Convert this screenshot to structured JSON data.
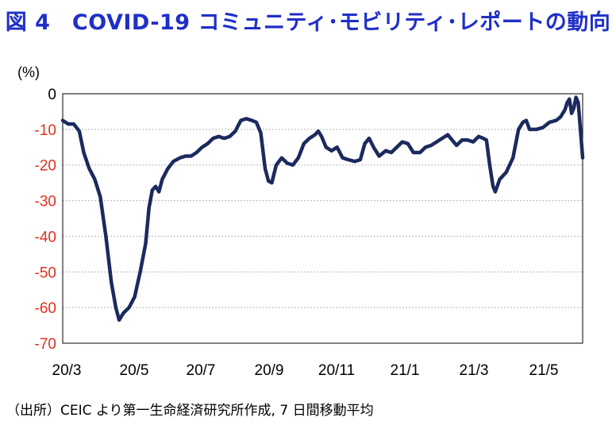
{
  "title": "図 4　COVID-19 コミュニティ･モビリティ･レポートの動向",
  "source": "（出所）CEIC より第一生命経済研究所作成, 7 日間移動平均",
  "chart_data": {
    "type": "line",
    "title": "図 4　COVID-19 コミュニティ･モビリティ･レポートの動向",
    "ylabel": "(%)",
    "xlabel": "",
    "ylim": [
      -70,
      0
    ],
    "yticks": [
      0,
      -10,
      -20,
      -30,
      -40,
      -50,
      -60,
      -70
    ],
    "xticks": [
      "20/3",
      "20/5",
      "20/7",
      "20/9",
      "20/11",
      "21/1",
      "21/3",
      "21/5"
    ],
    "xlim": [
      "2020-02-15",
      "2021-05-30"
    ],
    "grid": true,
    "line_color": "#1b2a5e",
    "series": [
      {
        "name": "",
        "points": [
          [
            "2020-02-15",
            -7.5
          ],
          [
            "2020-02-20",
            -8.5
          ],
          [
            "2020-02-25",
            -8.5
          ],
          [
            "2020-03-01",
            -10.5
          ],
          [
            "2020-03-05",
            -16.5
          ],
          [
            "2020-03-10",
            -21
          ],
          [
            "2020-03-15",
            -24
          ],
          [
            "2020-03-20",
            -29
          ],
          [
            "2020-03-25",
            -40
          ],
          [
            "2020-03-30",
            -53
          ],
          [
            "2020-04-03",
            -60
          ],
          [
            "2020-04-06",
            -63.5
          ],
          [
            "2020-04-10",
            -61.5
          ],
          [
            "2020-04-15",
            -60
          ],
          [
            "2020-04-20",
            -57
          ],
          [
            "2020-04-25",
            -50
          ],
          [
            "2020-04-30",
            -42
          ],
          [
            "2020-05-03",
            -32
          ],
          [
            "2020-05-06",
            -27
          ],
          [
            "2020-05-09",
            -26
          ],
          [
            "2020-05-12",
            -27.5
          ],
          [
            "2020-05-15",
            -24
          ],
          [
            "2020-05-20",
            -21
          ],
          [
            "2020-05-25",
            -19
          ],
          [
            "2020-05-31",
            -18
          ],
          [
            "2020-06-05",
            -17.5
          ],
          [
            "2020-06-10",
            -17.5
          ],
          [
            "2020-06-15",
            -16.5
          ],
          [
            "2020-06-20",
            -15
          ],
          [
            "2020-06-25",
            -14
          ],
          [
            "2020-06-30",
            -12.5
          ],
          [
            "2020-07-05",
            -12
          ],
          [
            "2020-07-10",
            -12.5
          ],
          [
            "2020-07-15",
            -12
          ],
          [
            "2020-07-20",
            -10.5
          ],
          [
            "2020-07-25",
            -7.5
          ],
          [
            "2020-07-30",
            -7
          ],
          [
            "2020-08-04",
            -7.5
          ],
          [
            "2020-08-08",
            -8
          ],
          [
            "2020-08-12",
            -11
          ],
          [
            "2020-08-16",
            -21
          ],
          [
            "2020-08-19",
            -24.5
          ],
          [
            "2020-08-22",
            -25
          ],
          [
            "2020-08-26",
            -20
          ],
          [
            "2020-08-31",
            -18
          ],
          [
            "2020-09-05",
            -19.5
          ],
          [
            "2020-09-10",
            -20
          ],
          [
            "2020-09-15",
            -18
          ],
          [
            "2020-09-20",
            -14
          ],
          [
            "2020-09-25",
            -12.5
          ],
          [
            "2020-09-30",
            -11.5
          ],
          [
            "2020-10-03",
            -10.5
          ],
          [
            "2020-10-06",
            -12
          ],
          [
            "2020-10-10",
            -15
          ],
          [
            "2020-10-15",
            -16
          ],
          [
            "2020-10-20",
            -15
          ],
          [
            "2020-10-25",
            -18
          ],
          [
            "2020-10-30",
            -18.5
          ],
          [
            "2020-11-05",
            -19
          ],
          [
            "2020-11-10",
            -18.5
          ],
          [
            "2020-11-14",
            -14
          ],
          [
            "2020-11-18",
            -12.5
          ],
          [
            "2020-11-22",
            -15
          ],
          [
            "2020-11-27",
            -17.5
          ],
          [
            "2020-12-03",
            -16
          ],
          [
            "2020-12-08",
            -16.5
          ],
          [
            "2020-12-13",
            -15
          ],
          [
            "2020-12-18",
            -13.5
          ],
          [
            "2020-12-23",
            -14
          ],
          [
            "2020-12-28",
            -16.5
          ],
          [
            "2021-01-03",
            -16.5
          ],
          [
            "2021-01-08",
            -15
          ],
          [
            "2021-01-13",
            -14.5
          ],
          [
            "2021-01-18",
            -13.5
          ],
          [
            "2021-01-23",
            -12.5
          ],
          [
            "2021-01-28",
            -11.5
          ],
          [
            "2021-02-01",
            -13
          ],
          [
            "2021-02-05",
            -14.5
          ],
          [
            "2021-02-10",
            -13
          ],
          [
            "2021-02-15",
            -13
          ],
          [
            "2021-02-20",
            -13.5
          ],
          [
            "2021-02-25",
            -12
          ],
          [
            "2021-03-01",
            -12.5
          ],
          [
            "2021-03-04",
            -13
          ],
          [
            "2021-03-07",
            -20
          ],
          [
            "2021-03-10",
            -26
          ],
          [
            "2021-03-12",
            -27.5
          ],
          [
            "2021-03-16",
            -24
          ],
          [
            "2021-03-22",
            -22
          ],
          [
            "2021-03-28",
            -18
          ],
          [
            "2021-04-02",
            -10
          ],
          [
            "2021-04-06",
            -8
          ],
          [
            "2021-04-09",
            -7.5
          ],
          [
            "2021-04-12",
            -10
          ],
          [
            "2021-04-18",
            -10
          ],
          [
            "2021-04-24",
            -9.5
          ],
          [
            "2021-04-30",
            -8
          ],
          [
            "2021-05-06",
            -7.5
          ],
          [
            "2021-05-10",
            -6.5
          ],
          [
            "2021-05-14",
            -4.5
          ],
          [
            "2021-05-16",
            -2.5
          ],
          [
            "2021-05-18",
            -1.5
          ],
          [
            "2021-05-20",
            -5.5
          ],
          [
            "2021-05-22",
            -4
          ],
          [
            "2021-05-24",
            -1
          ],
          [
            "2021-05-26",
            -2.5
          ],
          [
            "2021-05-28",
            -10
          ],
          [
            "2021-05-30",
            -18
          ]
        ]
      }
    ]
  }
}
